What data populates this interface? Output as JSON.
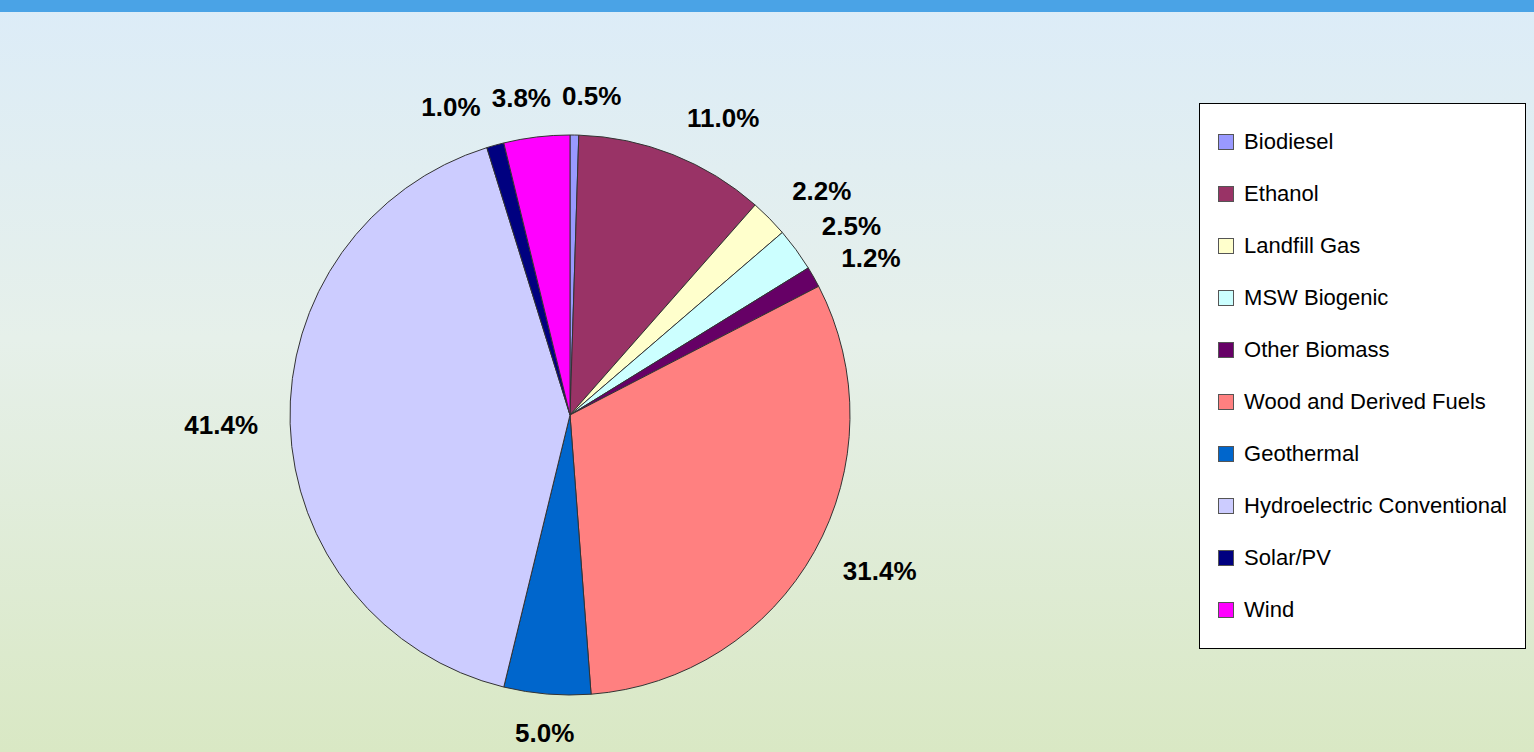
{
  "chart_data": {
    "type": "pie",
    "categories": [
      "Biodiesel",
      "Ethanol",
      "Landfill Gas",
      "MSW Biogenic",
      "Other Biomass",
      "Wood and Derived Fuels",
      "Geothermal",
      "Hydroelectric Conventional",
      "Solar/PV",
      "Wind"
    ],
    "values": [
      0.5,
      11.0,
      2.2,
      2.5,
      1.2,
      31.4,
      5.0,
      41.4,
      1.0,
      3.8
    ],
    "value_labels": [
      "0.5%",
      "11.0%",
      "2.2%",
      "2.5%",
      "1.2%",
      "31.4%",
      "5.0%",
      "41.4%",
      "1.0%",
      "3.8%"
    ],
    "colors": [
      "#9999ff",
      "#993366",
      "#ffffcc",
      "#ccffff",
      "#660066",
      "#ff8080",
      "#0066cc",
      "#ccccff",
      "#000080",
      "#ff00ff"
    ],
    "data_labels": true,
    "legend": "right"
  }
}
